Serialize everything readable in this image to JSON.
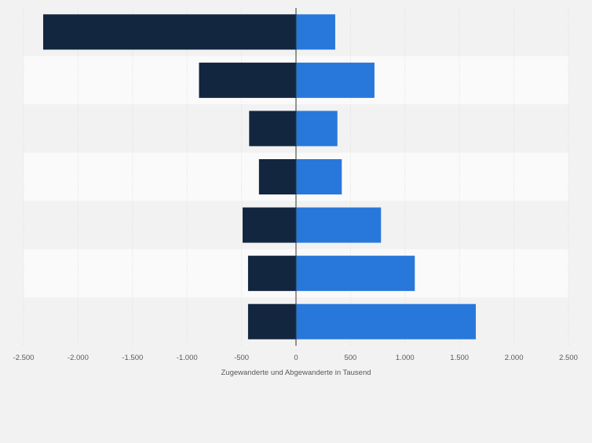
{
  "chart_data": {
    "type": "bar",
    "orientation": "horizontal",
    "stacked": "diverging",
    "title": "",
    "xlabel": "Zugewanderte und Abgewanderte in Tausend",
    "ylabel": "",
    "xlim": [
      -2500,
      2500
    ],
    "x_ticks": [
      -2500,
      -2000,
      -1500,
      -1000,
      -500,
      0,
      500,
      1000,
      1500,
      2000,
      2500
    ],
    "x_tick_labels": [
      "-2.500",
      "-2.000",
      "-1.500",
      "-1.000",
      "-500",
      "0",
      "500",
      "1.000",
      "1.500",
      "2.000",
      "2.500"
    ],
    "categories": [
      "",
      "",
      "",
      "",
      "",
      "",
      ""
    ],
    "series": [
      {
        "values": [
          -2320,
          -890,
          -430,
          -340,
          -490,
          -440,
          -440
        ],
        "color": "#12263f"
      },
      {
        "values": [
          360,
          720,
          380,
          420,
          780,
          1090,
          1650
        ],
        "color": "#2878dc"
      }
    ],
    "grid": true,
    "legend": "none"
  }
}
